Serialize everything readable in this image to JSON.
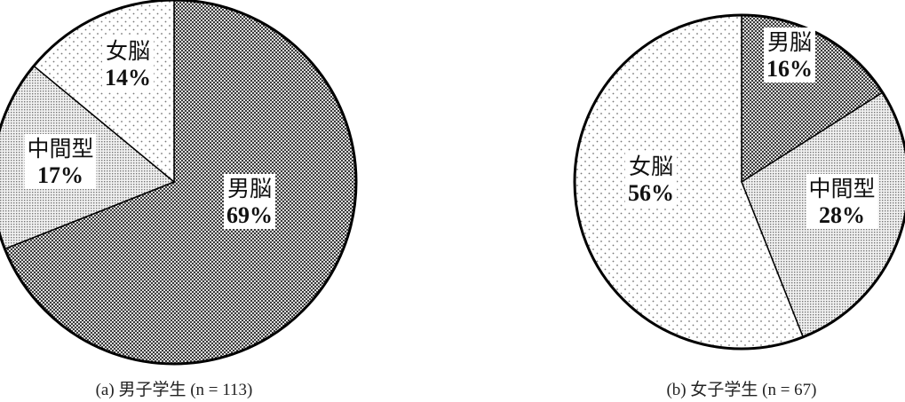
{
  "chart_data": [
    {
      "type": "pie",
      "caption": "(a) 男子学生 (n = 113)",
      "slices": [
        {
          "label": "男脳",
          "value": 69,
          "value_label": "69%",
          "pattern": "checker"
        },
        {
          "label": "中間型",
          "value": 17,
          "value_label": "17%",
          "pattern": "fine-dots"
        },
        {
          "label": "女脳",
          "value": 14,
          "value_label": "14%",
          "pattern": "sparse-dots"
        }
      ]
    },
    {
      "type": "pie",
      "caption": "(b) 女子学生 (n = 67)",
      "slices": [
        {
          "label": "男脳",
          "value": 16,
          "value_label": "16%",
          "pattern": "checker"
        },
        {
          "label": "中間型",
          "value": 28,
          "value_label": "28%",
          "pattern": "fine-dots"
        },
        {
          "label": "女脳",
          "value": 56,
          "value_label": "56%",
          "pattern": "sparse-dots"
        }
      ]
    }
  ]
}
